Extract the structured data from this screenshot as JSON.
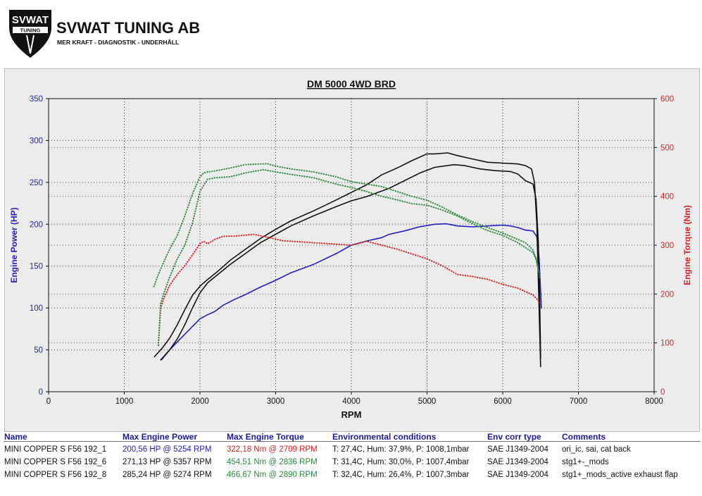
{
  "brand": {
    "emblem_text": "SVWAT",
    "emblem_subtext": "TUNING",
    "name": "SVWAT TUNING AB",
    "tagline": "MER KRAFT - DIAGNOSTIK - UNDERHÅLL"
  },
  "chart_data": {
    "type": "line",
    "title": "DM 5000 4WD BRD",
    "xlabel": "RPM",
    "ylabel": "Engine Power (HP)",
    "y2label": "Engine Torque (Nm)",
    "xlim": [
      0,
      8000
    ],
    "ylim": [
      0,
      350
    ],
    "y2lim": [
      0,
      600
    ],
    "x_ticks": [
      "0",
      "1000",
      "2000",
      "3000",
      "4000",
      "5000",
      "6000",
      "7000",
      "8000"
    ],
    "y_ticks": [
      "0",
      "50",
      "100",
      "150",
      "200",
      "250",
      "300",
      "350"
    ],
    "y2_ticks": [
      "0",
      "100",
      "200",
      "300",
      "400",
      "500",
      "600"
    ],
    "grid": true,
    "series": [
      {
        "axis": "left",
        "color": "#1f1fc8",
        "dash": "solid",
        "x": [
          1480,
          1600,
          1750,
          1900,
          2000,
          2100,
          2200,
          2300,
          2450,
          2600,
          2800,
          3000,
          3200,
          3500,
          3800,
          4000,
          4200,
          4400,
          4500,
          4700,
          4900,
          5100,
          5254,
          5400,
          5600,
          5800,
          6000,
          6100,
          6200,
          6300,
          6400,
          6450,
          6480,
          6500,
          6510
        ],
        "y": [
          38,
          50,
          64,
          78,
          87,
          92,
          96,
          103,
          110,
          116,
          125,
          133,
          142,
          152,
          165,
          175,
          180,
          184,
          188,
          192,
          197,
          200,
          200.56,
          198,
          197,
          198,
          199,
          198,
          196,
          193,
          192,
          185,
          160,
          120,
          100
        ]
      },
      {
        "axis": "left",
        "color": "#111111",
        "dash": "solid",
        "x": [
          1490,
          1600,
          1700,
          1800,
          1900,
          2000,
          2100,
          2250,
          2400,
          2600,
          2800,
          3000,
          3200,
          3500,
          3800,
          4000,
          4200,
          4500,
          4700,
          4900,
          5100,
          5357,
          5500,
          5700,
          5900,
          6100,
          6200,
          6300,
          6400,
          6440,
          6470,
          6490,
          6500
        ],
        "y": [
          38,
          50,
          63,
          80,
          100,
          118,
          130,
          141,
          152,
          165,
          178,
          188,
          198,
          210,
          221,
          228,
          233,
          243,
          252,
          261,
          268,
          271.13,
          270,
          266,
          264,
          263,
          260,
          252,
          248,
          230,
          180,
          100,
          40
        ]
      },
      {
        "axis": "left",
        "color": "#111111",
        "dash": "solid",
        "x": [
          1400,
          1500,
          1600,
          1700,
          1800,
          1900,
          2000,
          2100,
          2250,
          2400,
          2600,
          2800,
          3000,
          3200,
          3500,
          3800,
          4000,
          4200,
          4400,
          4600,
          4800,
          5000,
          5100,
          5274,
          5400,
          5600,
          5800,
          6000,
          6200,
          6300,
          6380,
          6420,
          6450,
          6480,
          6500
        ],
        "y": [
          42,
          52,
          64,
          80,
          98,
          115,
          126,
          134,
          145,
          157,
          170,
          183,
          194,
          204,
          216,
          229,
          238,
          247,
          259,
          267,
          276,
          284,
          284,
          285.24,
          282,
          278,
          274,
          273,
          272,
          270,
          266,
          250,
          200,
          100,
          30
        ]
      },
      {
        "axis": "right",
        "color": "#e02020",
        "dash": "dotted",
        "x": [
          1450,
          1480,
          1520,
          1600,
          1700,
          1800,
          1900,
          2000,
          2050,
          2100,
          2200,
          2300,
          2500,
          2709,
          2900,
          3100,
          3300,
          3500,
          3800,
          4000,
          4200,
          4400,
          4600,
          4800,
          5000,
          5200,
          5400,
          5600,
          5800,
          6000,
          6200,
          6300,
          6400,
          6450,
          6490
        ],
        "y": [
          95,
          170,
          190,
          218,
          240,
          258,
          280,
          303,
          308,
          303,
          312,
          318,
          319,
          322.18,
          316,
          309,
          307,
          305,
          302,
          300,
          308,
          300,
          292,
          282,
          272,
          258,
          240,
          236,
          230,
          220,
          212,
          205,
          198,
          190,
          182
        ]
      },
      {
        "axis": "right",
        "color": "#2a8a3a",
        "dash": "dotted",
        "x": [
          1450,
          1480,
          1520,
          1600,
          1700,
          1800,
          1900,
          2000,
          2100,
          2200,
          2400,
          2600,
          2836,
          3000,
          3200,
          3500,
          3800,
          4000,
          4200,
          4400,
          4600,
          4800,
          5000,
          5200,
          5400,
          5600,
          5800,
          6000,
          6200,
          6300,
          6400,
          6450,
          6490
        ],
        "y": [
          95,
          180,
          200,
          235,
          272,
          300,
          345,
          410,
          435,
          438,
          440,
          448,
          454.51,
          450,
          445,
          438,
          425,
          418,
          410,
          400,
          393,
          385,
          382,
          372,
          360,
          344,
          330,
          320,
          305,
          295,
          285,
          270,
          230
        ]
      },
      {
        "axis": "right",
        "color": "#2a8a3a",
        "dash": "dotted",
        "x": [
          1390,
          1450,
          1500,
          1600,
          1700,
          1800,
          1900,
          2000,
          2050,
          2100,
          2200,
          2400,
          2600,
          2890,
          3000,
          3200,
          3500,
          3800,
          4000,
          4200,
          4400,
          4600,
          4800,
          5000,
          5200,
          5400,
          5600,
          5800,
          6000,
          6200,
          6300,
          6400,
          6440,
          6480
        ],
        "y": [
          215,
          240,
          258,
          292,
          320,
          360,
          405,
          440,
          448,
          450,
          452,
          458,
          465,
          466.67,
          462,
          456,
          450,
          440,
          430,
          425,
          420,
          410,
          400,
          392,
          378,
          362,
          348,
          336,
          325,
          312,
          305,
          290,
          270,
          245
        ]
      }
    ]
  },
  "legend": {
    "headers": [
      "Name",
      "Max Engine Power",
      "Max Engine Torque",
      "Environmental conditions",
      "Env corr type",
      "Comments"
    ],
    "rows": [
      {
        "name": "MINI COPPER S F56 192_1",
        "power": "200,56 HP @ 5254 RPM",
        "torque": "322,18 Nm @ 2709 RPM",
        "env": "T: 27,4C, Hum: 37,9%, P: 1008,1mbar",
        "corr": "SAE J1349-2004",
        "comment": "ori_ic, sai, cat back",
        "power_color": "#1f1fc8",
        "torque_color": "#e02020"
      },
      {
        "name": "MINI COPPER S F56 192_6",
        "power": "271,13 HP @ 5357 RPM",
        "torque": "454,51 Nm @ 2836 RPM",
        "env": "T: 31,4C, Hum: 30,0%, P: 1007,4mbar",
        "corr": "SAE J1349-2004",
        "comment": "stg1+-_mods",
        "power_color": "#111111",
        "torque_color": "#2a8a3a"
      },
      {
        "name": "MINI COPPER S F56 192_8",
        "power": "285,24 HP @ 5274 RPM",
        "torque": "466,67 Nm @ 2890 RPM",
        "env": "T: 32,4C, Hum: 26,4%, P: 1007,3mbar",
        "corr": "SAE J1349-2004",
        "comment": "stg1+_mods_active exhaust flap",
        "power_color": "#111111",
        "torque_color": "#2a8a3a"
      }
    ]
  }
}
